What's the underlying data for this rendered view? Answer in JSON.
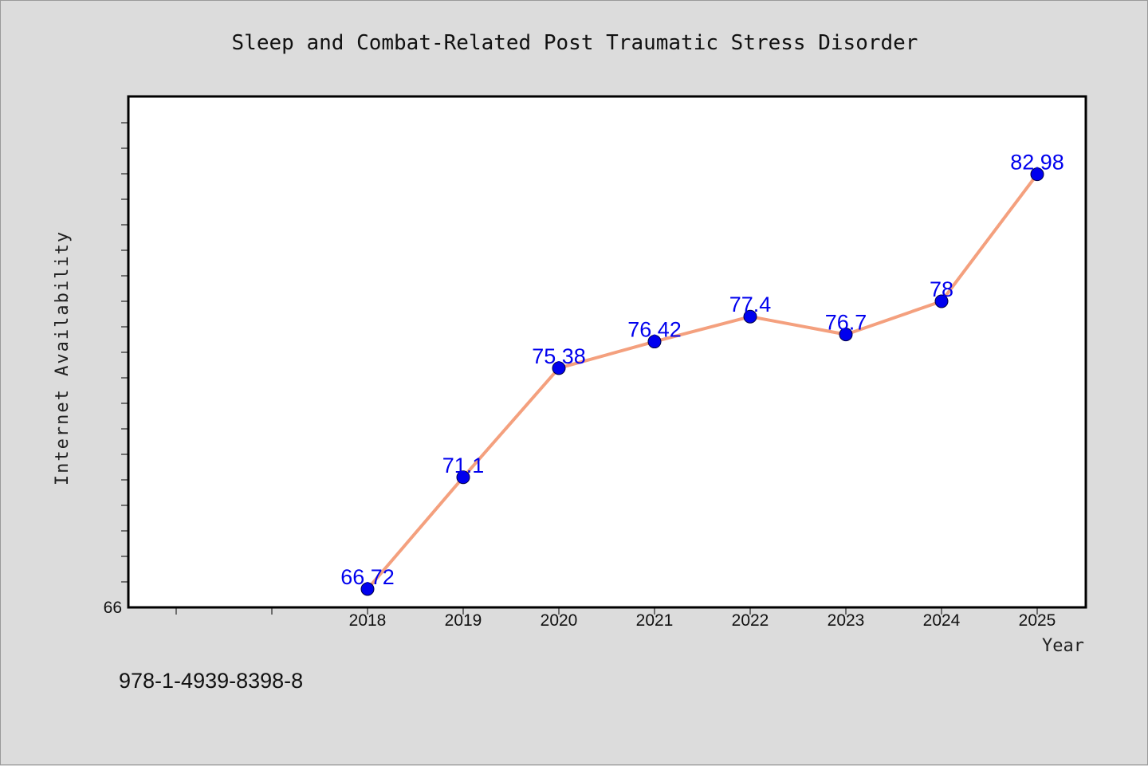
{
  "chart_data": {
    "type": "line",
    "title": "Sleep and Combat-Related Post Traumatic Stress Disorder",
    "xlabel": "Year",
    "ylabel": "Internet Availability",
    "categories": [
      "2018",
      "2019",
      "2020",
      "2021",
      "2022",
      "2023",
      "2024",
      "2025"
    ],
    "series": [
      {
        "values": [
          66.72,
          71.1,
          75.38,
          76.42,
          77.4,
          76.7,
          78,
          82.98
        ],
        "labels": [
          "66.72",
          "71.1",
          "75.38",
          "76.42",
          "77.4",
          "76.7",
          "78",
          "82.98"
        ]
      }
    ],
    "y_tick_labels": [
      "66"
    ],
    "ylim": [
      66,
      86
    ],
    "grid": false,
    "legend": "none",
    "colors": {
      "line": "#f4a07e",
      "marker": "#0000ee",
      "data_label": "#0000ee",
      "plot_background": "#ffffff",
      "page_background": "#dcdcdc"
    }
  },
  "footer": {
    "isbn": "978-1-4939-8398-8"
  }
}
